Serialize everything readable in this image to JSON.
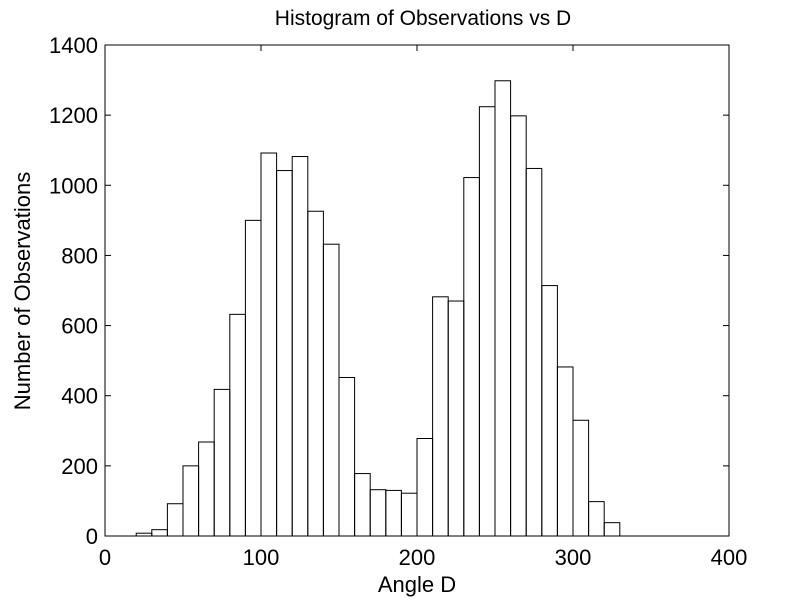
{
  "chart_data": {
    "type": "bar",
    "title": "Histogram of Observations vs D",
    "xlabel": "Angle D",
    "ylabel": "Number of Observations",
    "xlim": [
      0,
      400
    ],
    "ylim": [
      0,
      1400
    ],
    "xticks": [
      "0",
      "100",
      "200",
      "300",
      "400"
    ],
    "yticks": [
      "0",
      "200",
      "400",
      "600",
      "800",
      "1000",
      "1200",
      "1400"
    ],
    "grid": false,
    "bin_width": 10,
    "bin_edges": [
      20,
      30,
      40,
      50,
      60,
      70,
      80,
      90,
      100,
      110,
      120,
      130,
      140,
      150,
      160,
      170,
      180,
      190,
      200,
      210,
      220,
      230,
      240,
      250,
      260,
      270,
      280,
      290,
      300,
      310,
      320,
      330
    ],
    "values": [
      8,
      18,
      92,
      200,
      268,
      418,
      632,
      900,
      1092,
      1042,
      1082,
      926,
      832,
      452,
      178,
      132,
      130,
      122,
      278,
      682,
      670,
      1022,
      1224,
      1298,
      1198,
      1048,
      714,
      482,
      330,
      98,
      38
    ],
    "colors": {
      "line": "#000000",
      "background": "#ffffff"
    }
  }
}
